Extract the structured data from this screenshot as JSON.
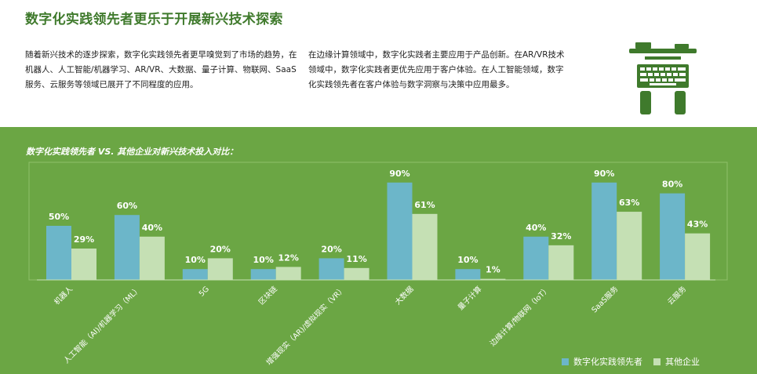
{
  "header": {
    "title": "数字化实践领先者更乐于开展新兴技术探索",
    "paragraph_left": "随着新兴技术的逐步探索，数字化实践领先者更早嗅觉到了市场的趋势，在机器人、人工智能/机器学习、AR/VR、大数据、量子计算、物联网、SaaS服务、云服务等领域已展开了不同程度的应用。",
    "paragraph_right": "在边缘计算领域中，数字化实践者主要应用于产品创新。在AR/VR技术领域中，数字化实践者更优先应用于客户体验。在人工智能领域，数字化实践领先者在客户体验与数字洞察与决策中应用最多。"
  },
  "hero": {
    "icon": "computer-hands-keyboard-icon"
  },
  "chart_data": {
    "type": "bar",
    "title": "数字化实践领先者 VS. 其他企业对新兴技术投入对比：",
    "categories": [
      "机器人",
      "人工智能（AI)/机器学习（ML）",
      "5G",
      "区块链",
      "增强现实（AR)/虚拟现实（VR）",
      "大数据",
      "量子计算",
      "边缘计算/物联网（IoT）",
      "SaaS服务",
      "云服务"
    ],
    "series": [
      {
        "name": "数字化实践领先者",
        "values": [
          50,
          60,
          10,
          10,
          20,
          90,
          10,
          40,
          90,
          80
        ],
        "labels": [
          "50%",
          "60%",
          "10%",
          "10%",
          "20%",
          "90%",
          "10%",
          "40%",
          "90%",
          "80%"
        ],
        "color": "#6cb6c9"
      },
      {
        "name": "其他企业",
        "values": [
          29,
          40,
          20,
          12,
          11,
          61,
          1,
          32,
          63,
          43
        ],
        "labels": [
          "29%",
          "40%",
          "20%",
          "12%",
          "11%",
          "61%",
          "1%",
          "32%",
          "63%",
          "43%"
        ],
        "color": "#c5e0b4"
      }
    ],
    "ylim": [
      0,
      100
    ],
    "legend": "bottom-right",
    "grid": false,
    "panel_color": "#6ba644"
  }
}
